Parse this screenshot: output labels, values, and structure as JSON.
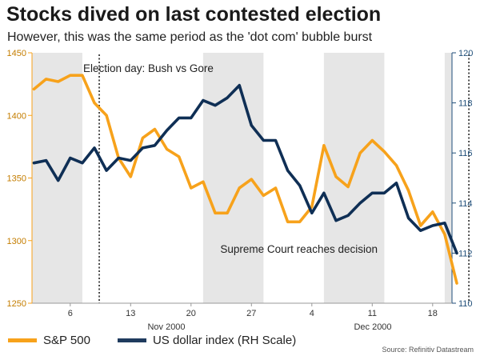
{
  "title": "Stocks dived on last contested election",
  "subtitle": "However, this was the same period as the 'dot com' bubble burst",
  "source": "Source: Refinitiv Datastream",
  "chart_data": {
    "type": "line",
    "left_axis": {
      "ylim": [
        1250,
        1450
      ],
      "ticks": [
        1250,
        1300,
        1350,
        1400,
        1450
      ],
      "color": "#f7a21b"
    },
    "right_axis": {
      "label": "RH Scale",
      "ylim": [
        110,
        120
      ],
      "ticks": [
        110,
        112,
        114,
        116,
        118,
        120
      ],
      "color": "#1f4e79"
    },
    "x_tick_labels": [
      "6",
      "13",
      "20",
      "27",
      "4",
      "11",
      "18"
    ],
    "month_labels": [
      "Nov 2000",
      "Dec 2000"
    ],
    "shaded_bands": [
      [
        0,
        4
      ],
      [
        14,
        19
      ],
      [
        24,
        29
      ],
      [
        34,
        39
      ]
    ],
    "annotations": [
      {
        "text": "Election day: Bush vs Gore",
        "marker_index": 5.4
      },
      {
        "text": "Supreme Court reaches decision",
        "marker_index": 36
      }
    ],
    "series": [
      {
        "name": "S&P 500",
        "axis": "left",
        "color": "#f7a21b",
        "values": [
          1421,
          1429,
          1427,
          1432,
          1432,
          1410,
          1400,
          1366,
          1351,
          1382,
          1389,
          1373,
          1367,
          1342,
          1347,
          1322,
          1322,
          1342,
          1349,
          1336,
          1342,
          1315,
          1315,
          1327,
          1376,
          1351,
          1343,
          1370,
          1380,
          1371,
          1360,
          1340,
          1312,
          1323,
          1305,
          1266
        ]
      },
      {
        "name": "US dollar index",
        "axis": "right",
        "color": "#1f4e79",
        "values": [
          115.6,
          115.7,
          114.9,
          115.8,
          115.6,
          116.2,
          115.3,
          115.8,
          115.7,
          116.2,
          116.3,
          116.9,
          117.4,
          117.4,
          118.1,
          117.9,
          118.2,
          118.7,
          117.1,
          116.5,
          116.5,
          115.3,
          114.7,
          113.6,
          114.4,
          113.3,
          113.5,
          114.0,
          114.4,
          114.4,
          114.8,
          113.4,
          112.9,
          113.1,
          113.2,
          112.0
        ]
      }
    ]
  },
  "legend": {
    "sp500_label": "S&P 500",
    "usd_label": "US dollar index (RH Scale)"
  }
}
